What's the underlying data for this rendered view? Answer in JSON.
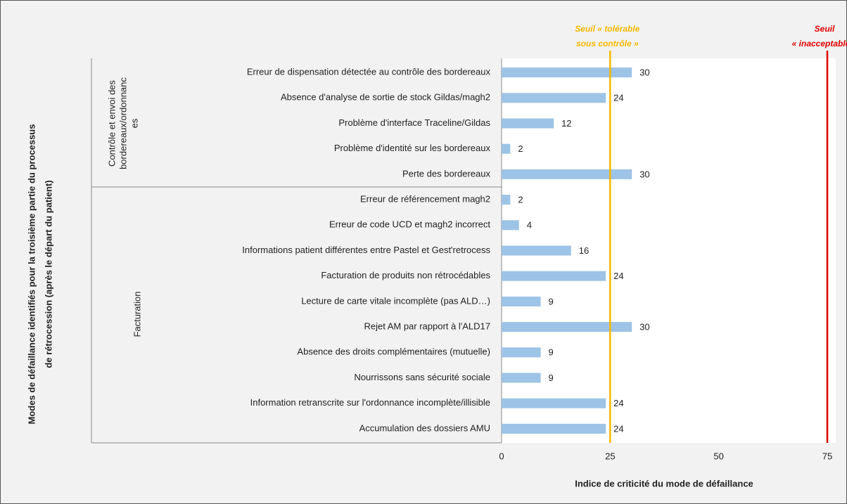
{
  "chart_data": {
    "type": "bar",
    "orientation": "horizontal",
    "y_axis_label": [
      "Modes de défaillance identifiés pour la troisième partie du processus",
      "de rétrocession (après le départ du patient)"
    ],
    "x_axis_label": "Indice de criticité du mode de défaillance",
    "color": "#9dc3e6",
    "groups": [
      {
        "label": [
          "Contrôle et envoi des",
          "bordereaux/ordonnanc",
          "es"
        ],
        "categories": [
          "Erreur de dispensation détectée au contrôle des bordereaux",
          "Absence d'analyse de sortie de stock Gildas/magh2",
          "Problème d'interface Traceline/Gildas",
          "Problème d'identité sur les bordereaux",
          "Perte des bordereaux"
        ],
        "values": [
          30,
          24,
          12,
          2,
          30
        ]
      },
      {
        "label": [
          "Facturation"
        ],
        "categories": [
          "Erreur de référencement magh2",
          "Erreur de code UCD et magh2 incorrect",
          "Informations patient différentes entre Pastel et Gest'retrocess",
          "Facturation de produits non rétrocédables",
          "Lecture de carte vitale incomplète (pas ALD…)",
          "Rejet AM par rapport à l'ALD17",
          "Absence des droits complémentaires (mutuelle)",
          "Nourrissons sans sécurité sociale",
          "Information retranscrite sur l'ordonnance incomplète/illisible",
          "Accumulation des dossiers AMU"
        ],
        "values": [
          2,
          4,
          16,
          24,
          9,
          30,
          9,
          9,
          24,
          24
        ]
      }
    ],
    "thresholds": [
      {
        "value": 25,
        "label": [
          "Seuil « tolérable",
          "sous contrôle »"
        ],
        "color": "#f5b800"
      },
      {
        "value": 75,
        "label": [
          "Seuil",
          "« inacceptable »"
        ],
        "color": "#e00000"
      }
    ],
    "xlim": [
      0,
      75
    ],
    "xticks": [
      0,
      25,
      50,
      75
    ],
    "grid": false
  }
}
